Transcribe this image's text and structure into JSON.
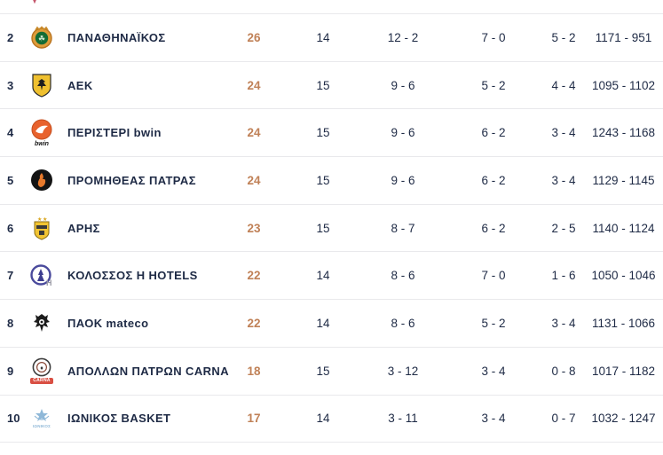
{
  "colors": {
    "points_accent": "#c08157",
    "text_navy": "#1e2a45",
    "divider": "#e9e9ec",
    "background": "#ffffff",
    "carna_badge_red": "#d94f43",
    "partial_logo_red": "#c4566b"
  },
  "standings": {
    "rows": [
      {
        "pos": "2",
        "team": "ΠΑΝΑΘΗΝΑΪΚΟΣ",
        "pts": "26",
        "gp": "14",
        "rec": "12 - 2",
        "home": "7 - 0",
        "away": "5 - 2",
        "score": "1171 - 951",
        "logo": "panathinaikos",
        "logo_caption": ""
      },
      {
        "pos": "3",
        "team": "ΑΕΚ",
        "pts": "24",
        "gp": "15",
        "rec": "9 - 6",
        "home": "5 - 2",
        "away": "4 - 4",
        "score": "1095 - 1102",
        "logo": "aek",
        "logo_caption": ""
      },
      {
        "pos": "4",
        "team": "ΠΕΡΙΣΤΕΡΙ bwin",
        "pts": "24",
        "gp": "15",
        "rec": "9 - 6",
        "home": "6 - 2",
        "away": "3 - 4",
        "score": "1243 - 1168",
        "logo": "peristeri",
        "logo_caption": "bwin"
      },
      {
        "pos": "5",
        "team": "ΠΡΟΜΗΘΕΑΣ ΠΑΤΡΑΣ",
        "pts": "24",
        "gp": "15",
        "rec": "9 - 6",
        "home": "6 - 2",
        "away": "3 - 4",
        "score": "1129 - 1145",
        "logo": "promitheas",
        "logo_caption": ""
      },
      {
        "pos": "6",
        "team": "ΑΡΗΣ",
        "pts": "23",
        "gp": "15",
        "rec": "8 - 7",
        "home": "6 - 2",
        "away": "2 - 5",
        "score": "1140 - 1124",
        "logo": "aris",
        "logo_caption": ""
      },
      {
        "pos": "7",
        "team": "ΚΟΛΟΣΣΟΣ Η HOTELS",
        "pts": "22",
        "gp": "14",
        "rec": "8 - 6",
        "home": "7 - 0",
        "away": "1 - 6",
        "score": "1050 - 1046",
        "logo": "kolossos",
        "logo_caption": ""
      },
      {
        "pos": "8",
        "team": "ΠΑΟΚ mateco",
        "pts": "22",
        "gp": "14",
        "rec": "8 - 6",
        "home": "5 - 2",
        "away": "3 - 4",
        "score": "1131 - 1066",
        "logo": "paok",
        "logo_caption": ""
      },
      {
        "pos": "9",
        "team": "ΑΠΟΛΛΩΝ ΠΑΤΡΩΝ CARNA",
        "pts": "18",
        "gp": "15",
        "rec": "3 - 12",
        "home": "3 - 4",
        "away": "0 - 8",
        "score": "1017 - 1182",
        "logo": "apollon",
        "logo_caption": "CARNA"
      },
      {
        "pos": "10",
        "team": "ΙΩΝΙΚΟΣ BASKET",
        "pts": "17",
        "gp": "14",
        "rec": "3 - 11",
        "home": "3 - 4",
        "away": "0 - 7",
        "score": "1032 - 1247",
        "logo": "ionikos",
        "logo_caption": "ΙΩΝΙΚΟΣ"
      }
    ]
  }
}
